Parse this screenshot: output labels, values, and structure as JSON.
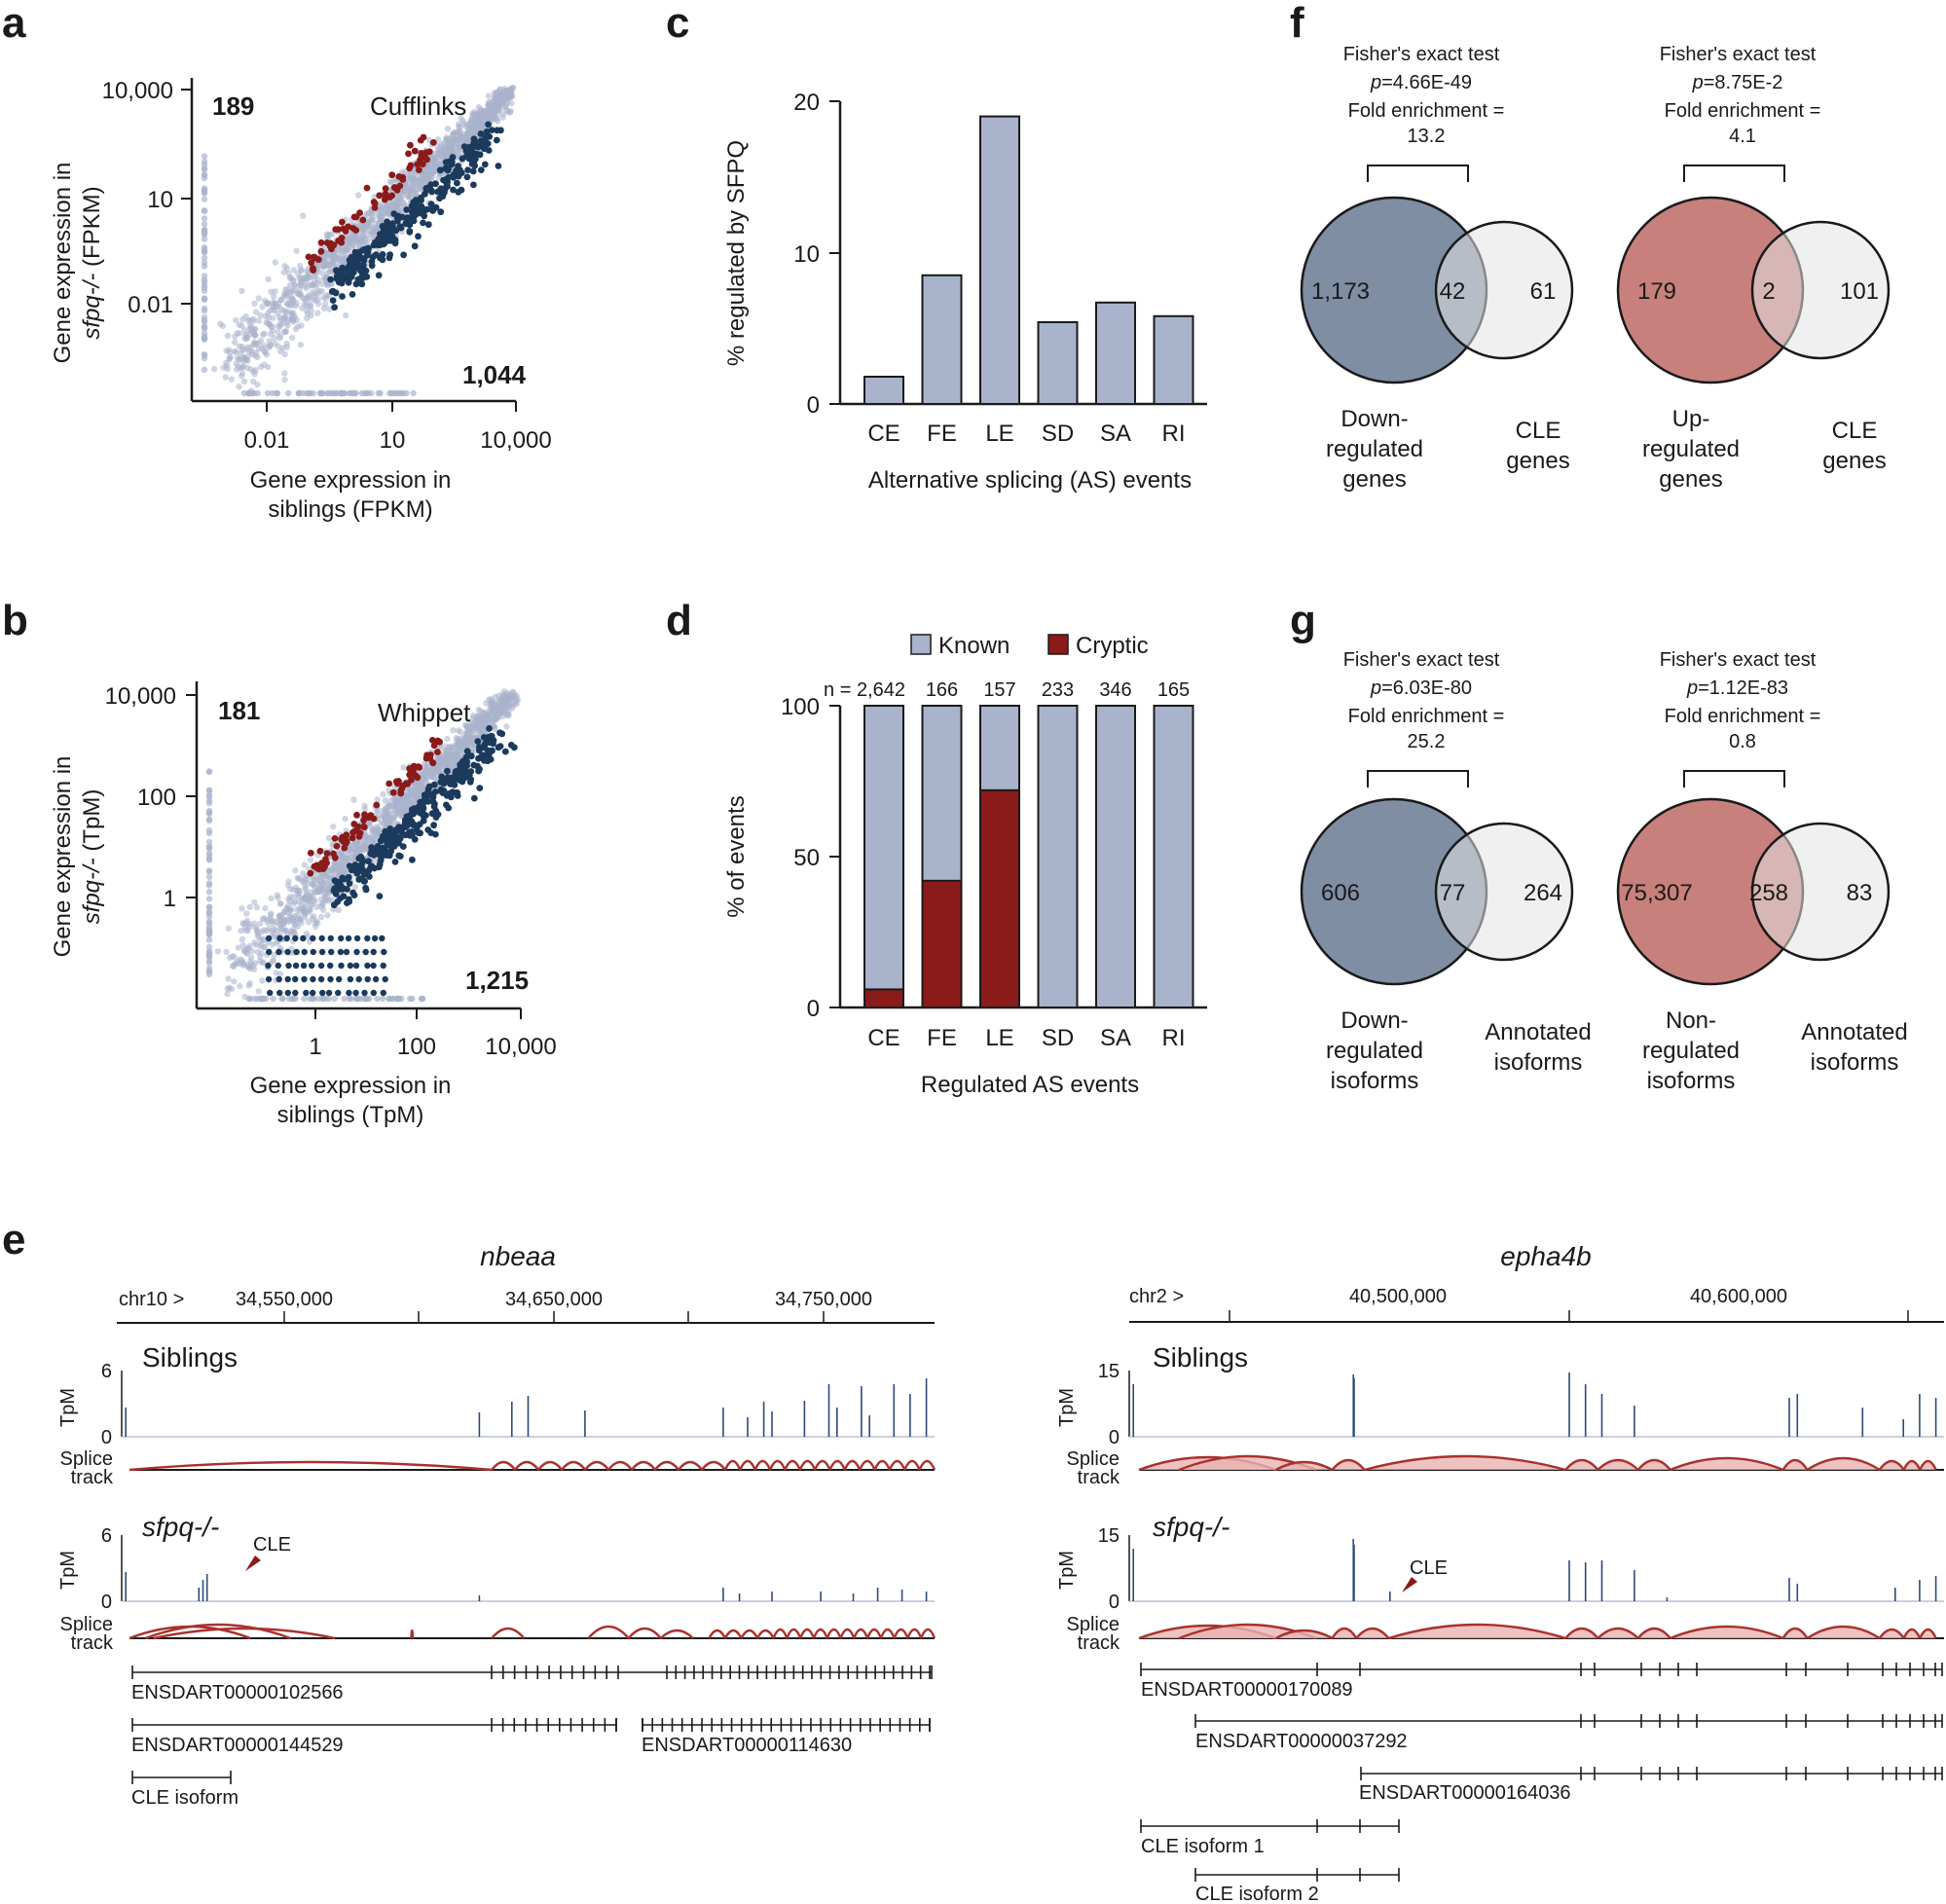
{
  "colors": {
    "navy": "#1b3a5c",
    "red": "#8b1a1a",
    "lightblue": "#a9b3cc",
    "venn_down": "#7f8ea3",
    "venn_up": "#c8807d",
    "venn_cle": "#e3e3e3",
    "track_blue": "#2e4a78",
    "splice_fill": "#e8b3b0",
    "splice_line": "#a8322f"
  },
  "panel_labels": {
    "a": "a",
    "b": "b",
    "c": "c",
    "d": "d",
    "e": "e",
    "f": "f",
    "g": "g"
  },
  "chart_data": [
    {
      "id": "a",
      "type": "scatter",
      "title": "Cufflinks",
      "xlabel_line1": "Gene expression in",
      "xlabel_line2": "siblings (FPKM)",
      "ylabel_line1": "Gene expression in",
      "ylabel_line2_italic": "sfpq-/-",
      "ylabel_line2_rest": " (FPKM)",
      "x_ticks": [
        "0.01",
        "10",
        "10,000"
      ],
      "y_ticks": [
        "0.01",
        "10",
        "10,000"
      ],
      "x_scale": "log",
      "y_scale": "log",
      "up_count": "189",
      "down_count": "1,044",
      "series": [
        {
          "name": "up",
          "color": "red"
        },
        {
          "name": "down",
          "color": "navy"
        },
        {
          "name": "not regulated",
          "color": "lightblue"
        }
      ]
    },
    {
      "id": "b",
      "type": "scatter",
      "title": "Whippet",
      "xlabel_line1": "Gene expression in",
      "xlabel_line2": "siblings (TpM)",
      "ylabel_line1": "Gene expression in",
      "ylabel_line2_italic": "sfpq-/-",
      "ylabel_line2_rest": " (TpM)",
      "x_ticks": [
        "1",
        "100",
        "10,000"
      ],
      "y_ticks": [
        "1",
        "100",
        "10,000"
      ],
      "x_scale": "log",
      "y_scale": "log",
      "up_count": "181",
      "down_count": "1,215",
      "series": [
        {
          "name": "up",
          "color": "red"
        },
        {
          "name": "down",
          "color": "navy"
        },
        {
          "name": "not regulated",
          "color": "lightblue"
        }
      ]
    },
    {
      "id": "c",
      "type": "bar",
      "categories": [
        "CE",
        "FE",
        "LE",
        "SD",
        "SA",
        "RI"
      ],
      "values": [
        1.8,
        8.5,
        19.0,
        5.4,
        6.7,
        5.8
      ],
      "ylabel": "% regulated by SFPQ",
      "xlabel": "Alternative splicing (AS) events",
      "ylim": [
        0,
        20
      ],
      "y_ticks": [
        "0",
        "10",
        "20"
      ]
    },
    {
      "id": "d",
      "type": "bar",
      "stacked": true,
      "categories": [
        "CE",
        "FE",
        "LE",
        "SD",
        "SA",
        "RI"
      ],
      "series": [
        {
          "name": "Cryptic",
          "values": [
            6,
            42,
            72,
            0,
            0,
            0
          ]
        },
        {
          "name": "Known",
          "values": [
            94,
            58,
            28,
            100,
            100,
            100
          ]
        }
      ],
      "legend": [
        "Known",
        "Cryptic"
      ],
      "n_labels": [
        "n = 2,642",
        "166",
        "157",
        "233",
        "346",
        "165"
      ],
      "ylabel": "% of events",
      "xlabel": "Regulated AS events",
      "ylim": [
        0,
        100
      ],
      "y_ticks": [
        "0",
        "50",
        "100"
      ]
    },
    {
      "id": "f",
      "type": "venn",
      "diagrams": [
        {
          "test": "Fisher's exact test",
          "p_label": "p",
          "p_value": "=4.66E-49",
          "fold_label": "Fold enrichment =",
          "fold_value": "13.2",
          "left": "1,173",
          "overlap": "42",
          "right": "61",
          "left_label": [
            "Down-",
            "regulated",
            "genes"
          ],
          "right_label": [
            "CLE",
            "genes"
          ]
        },
        {
          "test": "Fisher's exact test",
          "p_label": "p",
          "p_value": "=8.75E-2",
          "fold_label": "Fold enrichment =",
          "fold_value": "4.1",
          "left": "179",
          "overlap": "2",
          "right": "101",
          "left_label": [
            "Up-",
            "regulated",
            "genes"
          ],
          "right_label": [
            "CLE",
            "genes"
          ]
        }
      ]
    },
    {
      "id": "g",
      "type": "venn",
      "diagrams": [
        {
          "test": "Fisher's exact test",
          "p_label": "p",
          "p_value": "=6.03E-80",
          "fold_label": "Fold enrichment =",
          "fold_value": "25.2",
          "left": "606",
          "overlap": "77",
          "right": "264",
          "left_label": [
            "Down-",
            "regulated",
            "isoforms"
          ],
          "right_label": [
            "Annotated",
            "isoforms"
          ]
        },
        {
          "test": "Fisher's exact test",
          "p_label": "p",
          "p_value": "=1.12E-83",
          "fold_label": "Fold enrichment =",
          "fold_value": "0.8",
          "left": "75,307",
          "overlap": "258",
          "right": "83",
          "left_label": [
            "Non-",
            "regulated",
            "isoforms"
          ],
          "right_label": [
            "Annotated",
            "isoforms"
          ]
        }
      ]
    }
  ],
  "genome_tracks": {
    "left": {
      "gene": "nbeaa",
      "chrom": "chr10 >",
      "coords": [
        "34,550,000",
        "34,650,000",
        "34,750,000"
      ],
      "siblings_label": "Siblings",
      "mutant_label": "sfpq-/-",
      "tpm_label": "TpM",
      "tpm_max": "6",
      "tpm_zero": "0",
      "splice_label": [
        "Splice",
        "track"
      ],
      "cle_label": "CLE",
      "transcripts": [
        "ENSDART00000102566",
        "ENSDART00000144529",
        "ENSDART00000114630",
        "CLE isoform"
      ]
    },
    "right": {
      "gene": "epha4b",
      "chrom": "chr2 >",
      "coords": [
        "40,500,000",
        "40,600,000"
      ],
      "siblings_label": "Siblings",
      "mutant_label": "sfpq-/-",
      "tpm_label": "TpM",
      "tpm_max": "15",
      "tpm_zero": "0",
      "splice_label": [
        "Splice",
        "track"
      ],
      "cle_label": "CLE",
      "transcripts": [
        "ENSDART00000170089",
        "ENSDART00000037292",
        "ENSDART00000164036",
        "CLE isoform 1",
        "CLE isoform 2"
      ]
    }
  }
}
